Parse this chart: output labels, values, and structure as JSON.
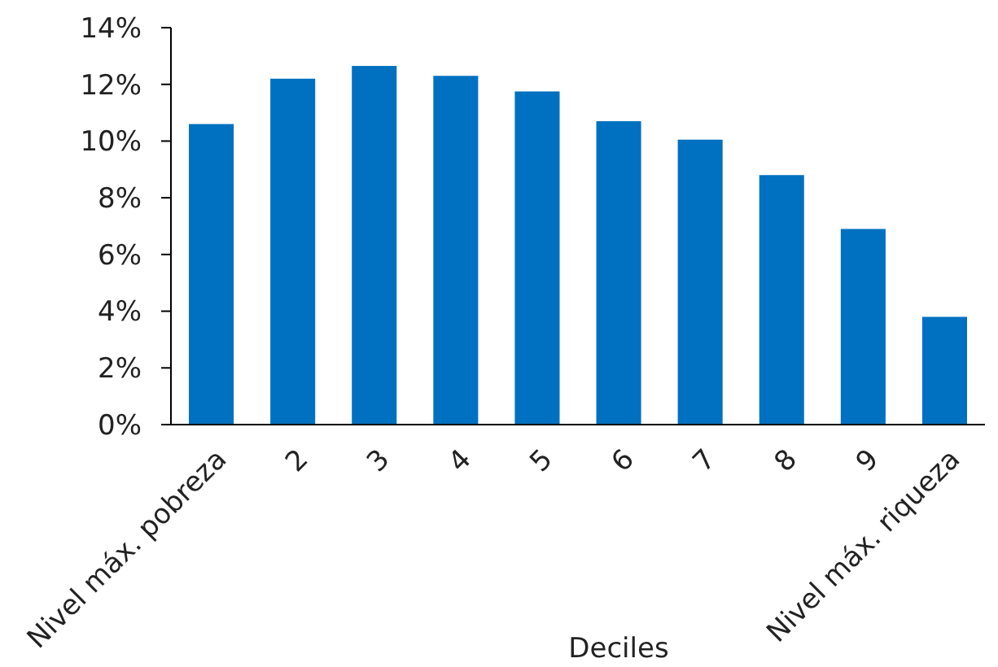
{
  "chart_data": {
    "type": "bar",
    "xlabel": "Deciles",
    "categories": [
      "Nivel máx. pobreza",
      "2",
      "3",
      "4",
      "5",
      "6",
      "7",
      "8",
      "9",
      "Nivel máx. riqueza"
    ],
    "values": [
      10.6,
      12.2,
      12.65,
      12.3,
      11.75,
      10.7,
      10.05,
      8.8,
      6.9,
      3.8
    ],
    "color": "#0070c0",
    "ylim": [
      0,
      14
    ],
    "yticks": [
      {
        "value": 0,
        "label": "0%"
      },
      {
        "value": 2,
        "label": "2%"
      },
      {
        "value": 4,
        "label": "4%"
      },
      {
        "value": 6,
        "label": "6%"
      },
      {
        "value": 8,
        "label": "8%"
      },
      {
        "value": 10,
        "label": "10%"
      },
      {
        "value": 12,
        "label": "12%"
      },
      {
        "value": 14,
        "label": "14%"
      }
    ]
  }
}
